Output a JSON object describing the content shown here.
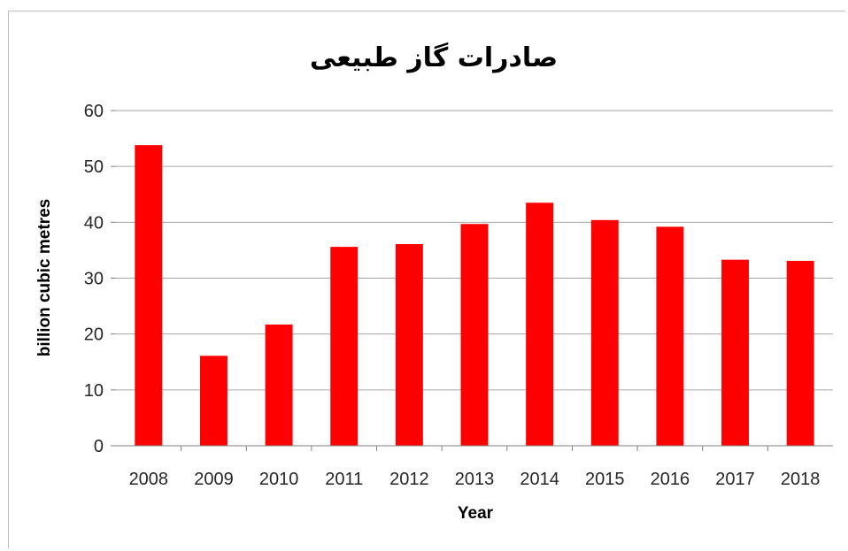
{
  "chart_data": {
    "type": "bar",
    "title": "صادرات گاز طبیعی",
    "xlabel": "Year",
    "ylabel": "billion cubic metres",
    "categories": [
      "2008",
      "2009",
      "2010",
      "2011",
      "2012",
      "2013",
      "2014",
      "2015",
      "2016",
      "2017",
      "2018"
    ],
    "values": [
      53.8,
      16.1,
      21.7,
      35.6,
      36.1,
      39.7,
      43.5,
      40.4,
      39.2,
      33.3,
      33.1
    ],
    "ylim": [
      0,
      60
    ],
    "yticks": [
      0,
      10,
      20,
      30,
      40,
      50,
      60
    ],
    "grid": true,
    "legend": "none",
    "bar_color": "#ff0000"
  }
}
